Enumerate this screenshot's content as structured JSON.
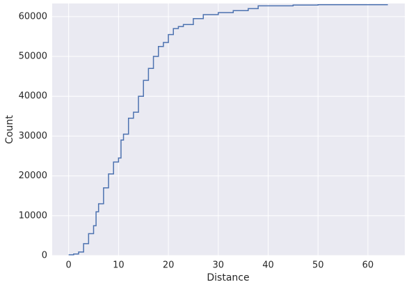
{
  "chart_data": {
    "type": "step",
    "x_label": "Distance",
    "y_label": "Count",
    "x": [
      0,
      1,
      2,
      3,
      4,
      5,
      5.5,
      6,
      7,
      8,
      9,
      10,
      10.5,
      11,
      12,
      13,
      14,
      15,
      16,
      17,
      18,
      19,
      20,
      21,
      22,
      23,
      25,
      27,
      30,
      33,
      36,
      38,
      45,
      50,
      64
    ],
    "series": [
      {
        "color": "#4c72b0",
        "values": [
          200,
          400,
          900,
          3000,
          5500,
          7500,
          11000,
          13000,
          17000,
          20500,
          23500,
          24500,
          29000,
          30500,
          34500,
          36000,
          40000,
          44000,
          47000,
          50000,
          52500,
          53500,
          55500,
          57000,
          57500,
          58000,
          59500,
          60500,
          61000,
          61500,
          62000,
          62700,
          62900,
          63000,
          63000
        ]
      }
    ],
    "xlim": [
      -3.3,
      67.4
    ],
    "ylim": [
      0,
      63300
    ],
    "xticks": [
      0,
      10,
      20,
      30,
      40,
      50,
      60
    ],
    "yticks": [
      0,
      10000,
      20000,
      30000,
      40000,
      50000,
      60000
    ],
    "grid": true
  }
}
